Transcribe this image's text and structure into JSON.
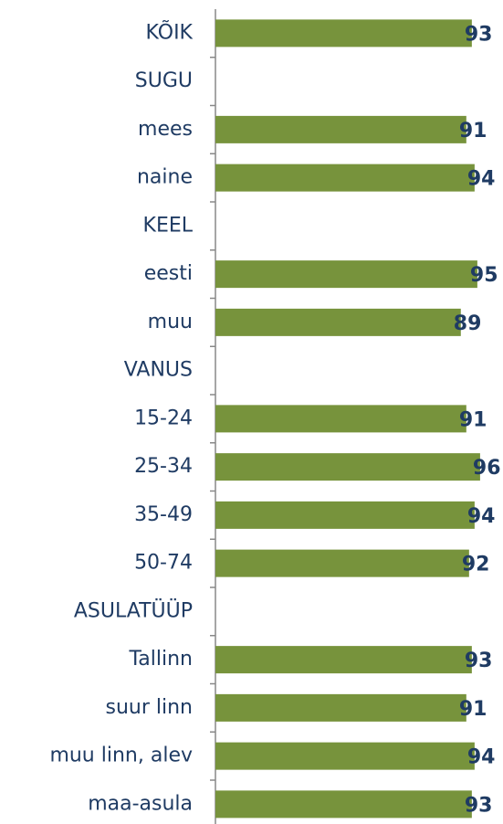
{
  "chart_data": {
    "type": "barh",
    "categories": [
      "KÕIK",
      "SUGU",
      "mees",
      "naine",
      "KEEL",
      "eesti",
      "muu",
      "VANUS",
      "15-24",
      "25-34",
      "35-49",
      "50-74",
      "ASULATÜÜP",
      "Tallinn",
      "suur linn",
      "muu linn, alev",
      "maa-asula"
    ],
    "values": [
      93,
      null,
      91,
      94,
      null,
      95,
      89,
      null,
      91,
      96,
      94,
      92,
      null,
      93,
      91,
      94,
      93
    ],
    "color": "#77933c",
    "xlim": [
      0,
      100
    ]
  }
}
